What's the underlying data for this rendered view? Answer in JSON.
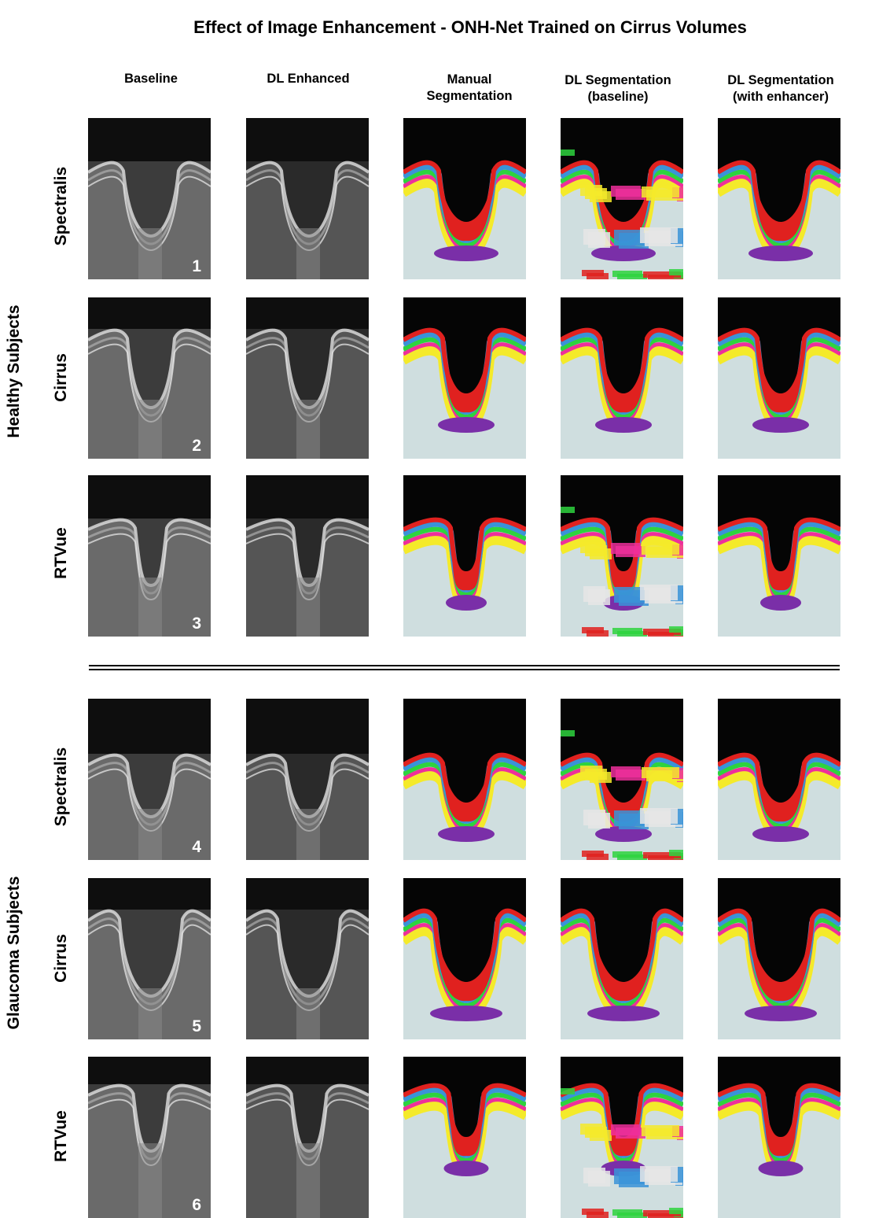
{
  "title": "Effect of Image Enhancement - ONH-Net Trained on Cirrus Volumes",
  "columns": [
    "Baseline",
    "DL Enhanced",
    "Manual\nSegmentation",
    "DL Segmentation\n(baseline)",
    "DL Segmentation\n(with enhancer)"
  ],
  "groups": [
    "Healthy Subjects",
    "Glaucoma Subjects"
  ],
  "rows": [
    {
      "device": "Spectralis",
      "number": "1",
      "group": 0
    },
    {
      "device": "Cirrus",
      "number": "2",
      "group": 0
    },
    {
      "device": "RTVue",
      "number": "3",
      "group": 0
    },
    {
      "device": "Spectralis",
      "number": "4",
      "group": 1
    },
    {
      "device": "Cirrus",
      "number": "5",
      "group": 1
    },
    {
      "device": "RTVue",
      "number": "6",
      "group": 1
    }
  ],
  "colors": {
    "background_tissue": "#cfdedf",
    "prelamina": "#e0211f",
    "lamina": "#7a2fa8",
    "rnfl_blue": "#3a93d8",
    "layer_green": "#2ed33e",
    "layer_pink": "#ee2f9b",
    "layer_yellow": "#f4ea2a",
    "vitreous": "#050505"
  }
}
